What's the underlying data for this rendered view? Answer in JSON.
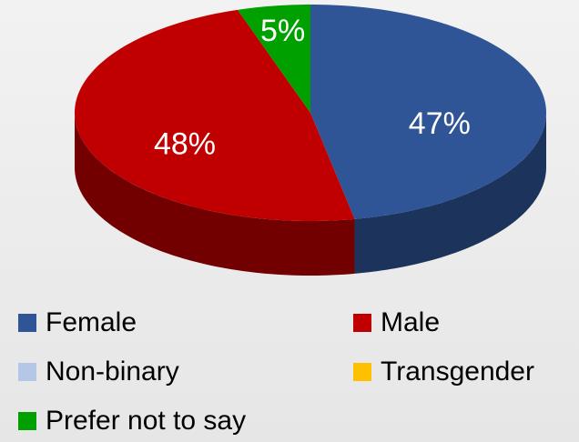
{
  "chart_data": {
    "type": "pie",
    "categories": [
      "Female",
      "Male",
      "Non-binary",
      "Transgender",
      "Prefer not to say"
    ],
    "values": [
      47,
      48,
      0,
      0,
      5
    ],
    "value_labels": [
      "47%",
      "48%",
      null,
      null,
      "5%"
    ],
    "colors": [
      "#2f5597",
      "#c00000",
      "#b4c7e7",
      "#ffc000",
      "#00a000"
    ],
    "legend": "bottom"
  }
}
